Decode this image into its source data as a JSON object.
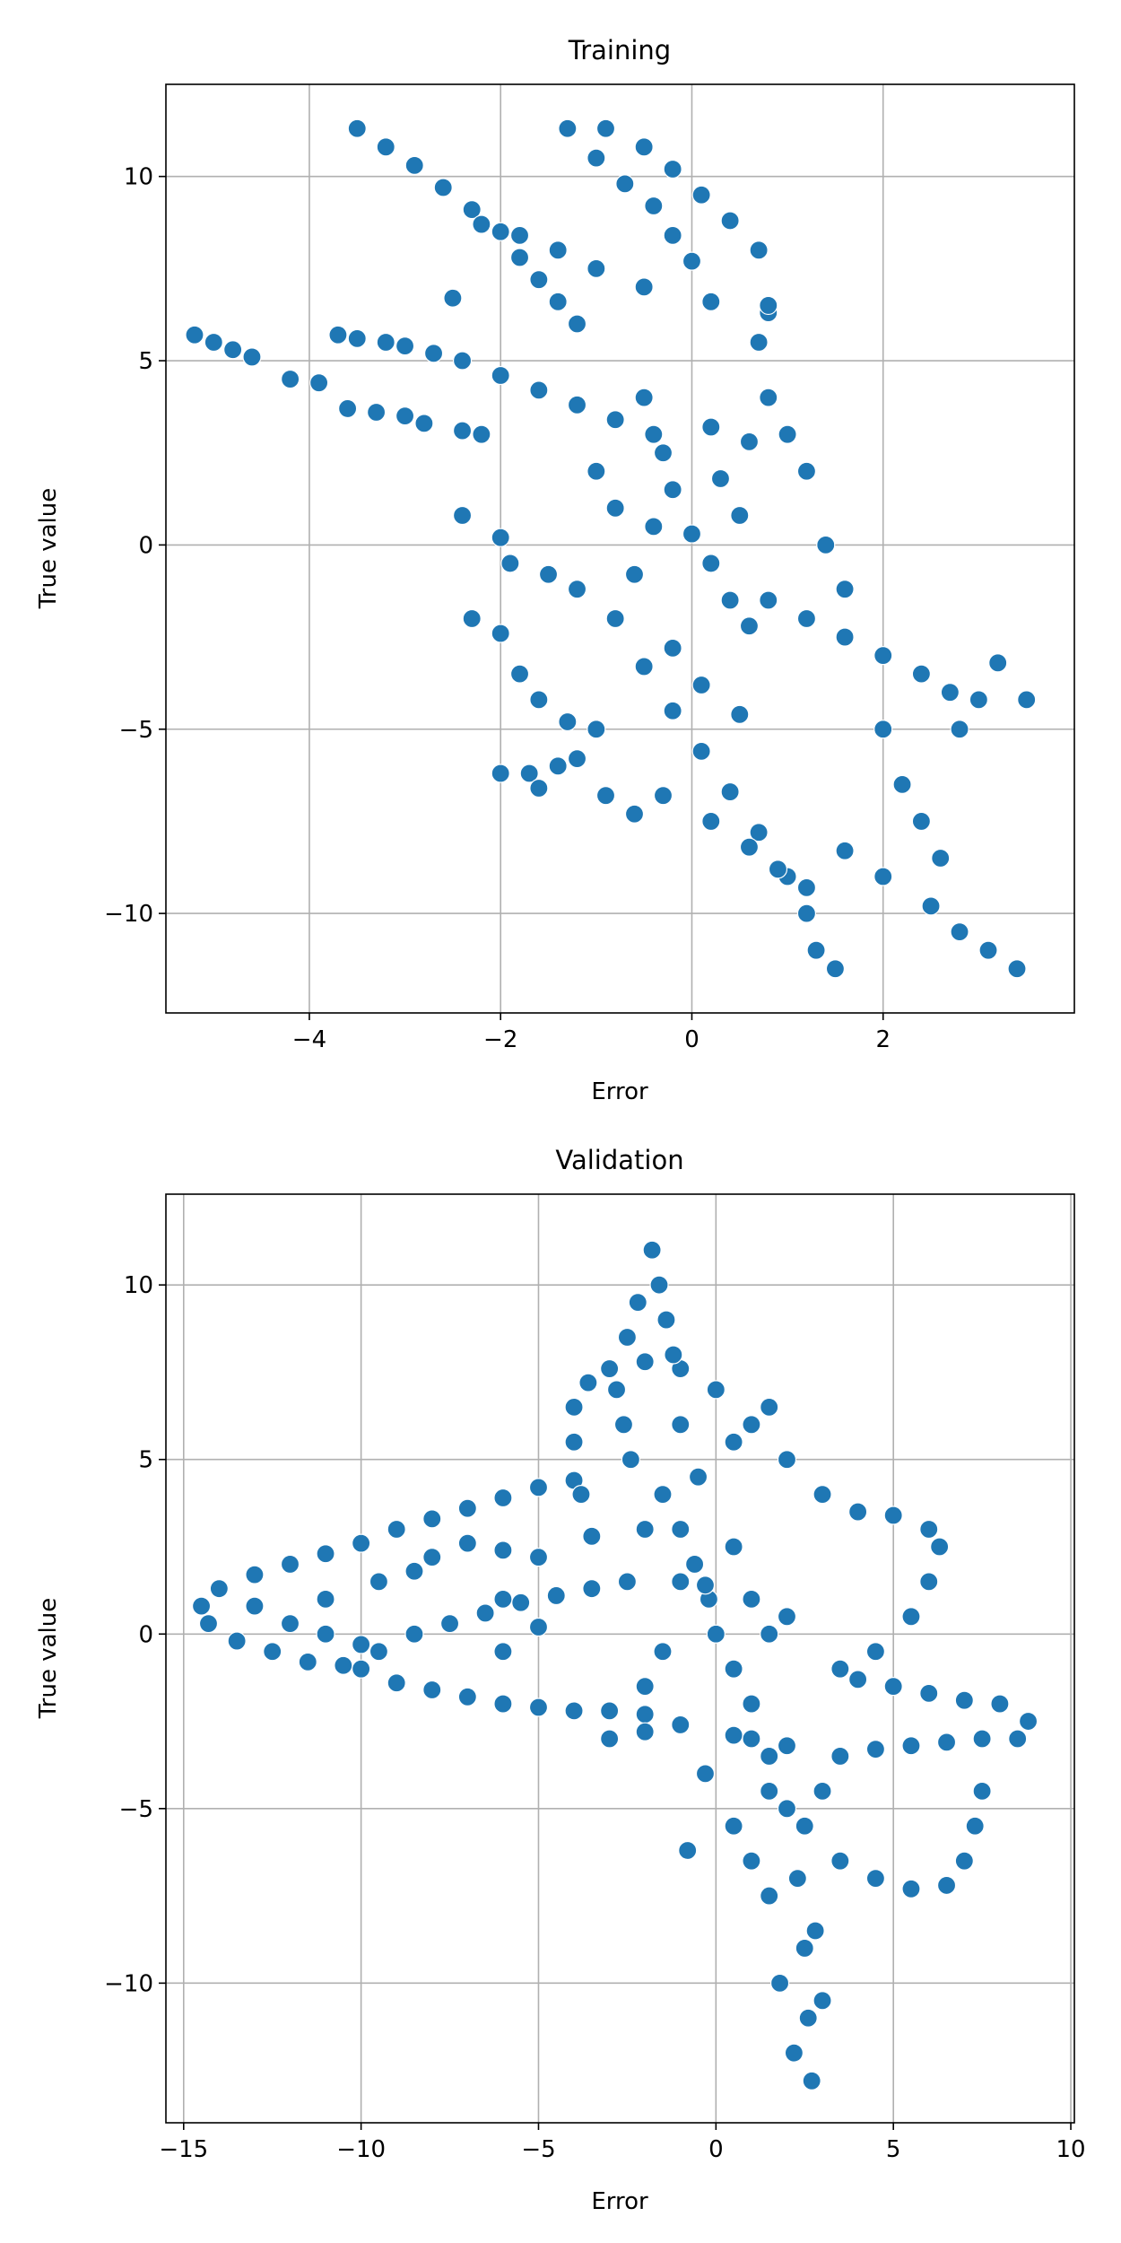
{
  "colors": {
    "point": "#1f77b4",
    "edge": "#ffffff",
    "grid": "#b0b0b0"
  },
  "chart_data": [
    {
      "type": "scatter",
      "title": "Training",
      "xlabel": "Error",
      "ylabel": "True value",
      "xlim": [
        -5.5,
        4.0
      ],
      "ylim": [
        -12.7,
        12.5
      ],
      "xticks": [
        -4,
        -2,
        0,
        2
      ],
      "yticks": [
        -10,
        -5,
        0,
        5,
        10
      ],
      "xtick_labels": [
        "−4",
        "−2",
        "0",
        "2"
      ],
      "ytick_labels": [
        "−10",
        "−5",
        "0",
        "5",
        "10"
      ],
      "grid": true,
      "series": [
        {
          "points": [
            [
              -5.2,
              5.7
            ],
            [
              -5.0,
              5.5
            ],
            [
              -4.8,
              5.3
            ],
            [
              -4.6,
              5.1
            ],
            [
              -4.2,
              4.5
            ],
            [
              -3.9,
              4.4
            ],
            [
              -3.7,
              5.7
            ],
            [
              -3.5,
              5.6
            ],
            [
              -3.2,
              5.5
            ],
            [
              -3.0,
              5.4
            ],
            [
              -2.7,
              5.2
            ],
            [
              -2.5,
              6.7
            ],
            [
              -3.6,
              3.7
            ],
            [
              -3.3,
              3.6
            ],
            [
              -3.0,
              3.5
            ],
            [
              -2.8,
              3.3
            ],
            [
              -2.4,
              3.1
            ],
            [
              -2.2,
              3.0
            ],
            [
              -3.5,
              11.3
            ],
            [
              -3.2,
              10.8
            ],
            [
              -2.9,
              10.3
            ],
            [
              -2.6,
              9.7
            ],
            [
              -2.3,
              9.1
            ],
            [
              -2.0,
              8.5
            ],
            [
              -1.8,
              7.8
            ],
            [
              -1.6,
              7.2
            ],
            [
              -1.4,
              6.6
            ],
            [
              -1.2,
              6.0
            ],
            [
              -1.3,
              11.3
            ],
            [
              -1.0,
              10.5
            ],
            [
              -0.7,
              9.8
            ],
            [
              -0.4,
              9.2
            ],
            [
              -0.2,
              8.4
            ],
            [
              0.0,
              7.7
            ],
            [
              -0.9,
              11.3
            ],
            [
              -0.5,
              10.8
            ],
            [
              -0.2,
              10.2
            ],
            [
              0.1,
              9.5
            ],
            [
              0.4,
              8.8
            ],
            [
              0.7,
              8.0
            ],
            [
              -2.2,
              8.7
            ],
            [
              -1.8,
              8.4
            ],
            [
              -1.4,
              8.0
            ],
            [
              -1.0,
              7.5
            ],
            [
              -0.5,
              7.0
            ],
            [
              0.2,
              6.6
            ],
            [
              0.8,
              6.3
            ],
            [
              -2.4,
              5.0
            ],
            [
              -2.0,
              4.6
            ],
            [
              -1.6,
              4.2
            ],
            [
              -1.2,
              3.8
            ],
            [
              -0.8,
              3.4
            ],
            [
              -0.4,
              3.0
            ],
            [
              -2.4,
              0.8
            ],
            [
              -2.0,
              0.2
            ],
            [
              -1.9,
              -0.5
            ],
            [
              -1.5,
              -0.8
            ],
            [
              -1.2,
              -1.2
            ],
            [
              -2.3,
              -2.0
            ],
            [
              -2.0,
              -2.4
            ],
            [
              -1.8,
              -3.5
            ],
            [
              -1.6,
              -4.2
            ],
            [
              -1.3,
              -4.8
            ],
            [
              -1.0,
              -5.0
            ],
            [
              -2.0,
              -6.2
            ],
            [
              -1.7,
              -6.2
            ],
            [
              -1.6,
              -6.6
            ],
            [
              -1.4,
              -6.0
            ],
            [
              -1.2,
              -5.8
            ],
            [
              -0.9,
              -6.8
            ],
            [
              -0.6,
              -7.3
            ],
            [
              -0.3,
              -6.8
            ],
            [
              -0.8,
              -2.0
            ],
            [
              -0.5,
              -3.3
            ],
            [
              -0.2,
              -4.5
            ],
            [
              0.1,
              -5.6
            ],
            [
              0.4,
              -6.7
            ],
            [
              0.7,
              -7.8
            ],
            [
              1.0,
              -9.0
            ],
            [
              1.2,
              -10.0
            ],
            [
              1.3,
              -11.0
            ],
            [
              1.5,
              -11.5
            ],
            [
              0.2,
              -7.5
            ],
            [
              0.6,
              -8.2
            ],
            [
              0.9,
              -8.8
            ],
            [
              1.2,
              -9.3
            ],
            [
              1.6,
              -8.3
            ],
            [
              2.0,
              -9.0
            ],
            [
              2.5,
              -9.8
            ],
            [
              2.8,
              -10.5
            ],
            [
              3.1,
              -11.0
            ],
            [
              3.4,
              -11.5
            ],
            [
              0.8,
              -1.5
            ],
            [
              1.2,
              -2.0
            ],
            [
              1.6,
              -2.5
            ],
            [
              2.0,
              -3.0
            ],
            [
              2.4,
              -3.5
            ],
            [
              2.7,
              -4.0
            ],
            [
              3.0,
              -4.2
            ],
            [
              3.2,
              -3.2
            ],
            [
              3.5,
              -4.2
            ],
            [
              2.0,
              -5.0
            ],
            [
              2.2,
              -6.5
            ],
            [
              2.4,
              -7.5
            ],
            [
              2.6,
              -8.5
            ],
            [
              2.8,
              -5.0
            ],
            [
              1.4,
              0.0
            ],
            [
              1.6,
              -1.2
            ],
            [
              1.2,
              2.0
            ],
            [
              1.0,
              3.0
            ],
            [
              0.8,
              4.0
            ],
            [
              0.7,
              5.5
            ],
            [
              0.8,
              6.5
            ],
            [
              -0.5,
              4.0
            ],
            [
              -0.3,
              2.5
            ],
            [
              -0.2,
              1.5
            ],
            [
              0.0,
              0.3
            ],
            [
              0.2,
              -0.5
            ],
            [
              0.4,
              -1.5
            ],
            [
              -0.8,
              1.0
            ],
            [
              -0.6,
              -0.8
            ],
            [
              -0.4,
              0.5
            ],
            [
              0.3,
              1.8
            ],
            [
              0.5,
              0.8
            ],
            [
              0.6,
              -2.2
            ],
            [
              -1.0,
              2.0
            ],
            [
              0.2,
              3.2
            ],
            [
              0.6,
              2.8
            ],
            [
              -0.2,
              -2.8
            ],
            [
              0.1,
              -3.8
            ],
            [
              0.5,
              -4.6
            ]
          ]
        }
      ]
    },
    {
      "type": "scatter",
      "title": "Validation",
      "xlabel": "Error",
      "ylabel": "True value",
      "xlim": [
        -15.5,
        10.1
      ],
      "ylim": [
        -14.0,
        12.6
      ],
      "xticks": [
        -15,
        -10,
        -5,
        0,
        5,
        10
      ],
      "yticks": [
        -10,
        -5,
        0,
        5,
        10
      ],
      "xtick_labels": [
        "−15",
        "−10",
        "−5",
        "0",
        "5",
        "10"
      ],
      "ytick_labels": [
        "−10",
        "−5",
        "0",
        "5",
        "10"
      ],
      "grid": true,
      "series": [
        {
          "points": [
            [
              -14.5,
              0.8
            ],
            [
              -14.0,
              1.3
            ],
            [
              -13.0,
              1.7
            ],
            [
              -12.0,
              2.0
            ],
            [
              -11.0,
              2.3
            ],
            [
              -10.0,
              2.6
            ],
            [
              -9.0,
              3.0
            ],
            [
              -8.0,
              3.3
            ],
            [
              -7.0,
              3.6
            ],
            [
              -6.0,
              3.9
            ],
            [
              -5.0,
              4.2
            ],
            [
              -4.0,
              4.4
            ],
            [
              -14.3,
              0.3
            ],
            [
              -13.5,
              -0.2
            ],
            [
              -12.5,
              -0.5
            ],
            [
              -11.5,
              -0.8
            ],
            [
              -10.5,
              -0.9
            ],
            [
              -13.0,
              0.8
            ],
            [
              -12.0,
              0.3
            ],
            [
              -11.0,
              0.0
            ],
            [
              -10.0,
              -0.3
            ],
            [
              -10.0,
              -1.0
            ],
            [
              -9.0,
              -1.4
            ],
            [
              -8.0,
              -1.6
            ],
            [
              -7.0,
              -1.8
            ],
            [
              -6.0,
              -2.0
            ],
            [
              -5.0,
              -2.1
            ],
            [
              -4.0,
              -2.2
            ],
            [
              -3.0,
              -2.2
            ],
            [
              -2.0,
              -2.3
            ],
            [
              -9.5,
              -0.5
            ],
            [
              -8.5,
              0.0
            ],
            [
              -7.5,
              0.3
            ],
            [
              -6.5,
              0.6
            ],
            [
              -5.5,
              0.9
            ],
            [
              -4.5,
              1.1
            ],
            [
              -3.5,
              1.3
            ],
            [
              -2.5,
              1.5
            ],
            [
              -8.0,
              2.2
            ],
            [
              -7.0,
              2.6
            ],
            [
              -6.0,
              2.4
            ],
            [
              -5.0,
              2.2
            ],
            [
              -3.5,
              2.8
            ],
            [
              -11.0,
              1.0
            ],
            [
              -9.5,
              1.5
            ],
            [
              -8.5,
              1.8
            ],
            [
              -6.0,
              1.0
            ],
            [
              -5.0,
              0.2
            ],
            [
              -6.0,
              -0.5
            ],
            [
              -3.8,
              4.0
            ],
            [
              -4.0,
              5.5
            ],
            [
              -4.0,
              6.5
            ],
            [
              -3.6,
              7.2
            ],
            [
              -3.0,
              7.6
            ],
            [
              -2.0,
              7.8
            ],
            [
              -1.0,
              7.6
            ],
            [
              -1.8,
              11.0
            ],
            [
              -1.6,
              10.0
            ],
            [
              -1.4,
              9.0
            ],
            [
              -1.2,
              8.0
            ],
            [
              -2.2,
              9.5
            ],
            [
              -2.5,
              8.5
            ],
            [
              -2.8,
              7.0
            ],
            [
              -2.6,
              6.0
            ],
            [
              -2.4,
              5.0
            ],
            [
              -1.5,
              4.0
            ],
            [
              -1.0,
              3.0
            ],
            [
              -0.6,
              2.0
            ],
            [
              -0.2,
              1.0
            ],
            [
              0.0,
              0.0
            ],
            [
              0.5,
              -1.0
            ],
            [
              1.0,
              -2.0
            ],
            [
              1.5,
              -3.5
            ],
            [
              2.0,
              -5.0
            ],
            [
              2.3,
              -7.0
            ],
            [
              2.5,
              -9.0
            ],
            [
              2.6,
              -11.0
            ],
            [
              2.7,
              -12.8
            ],
            [
              2.2,
              -12.0
            ],
            [
              1.8,
              -10.0
            ],
            [
              2.8,
              -8.5
            ],
            [
              3.0,
              -10.5
            ],
            [
              1.5,
              -7.5
            ],
            [
              1.0,
              -6.5
            ],
            [
              0.5,
              -5.5
            ],
            [
              -0.3,
              -4.0
            ],
            [
              1.0,
              6.0
            ],
            [
              2.0,
              5.0
            ],
            [
              3.0,
              4.0
            ],
            [
              4.0,
              3.5
            ],
            [
              5.0,
              3.4
            ],
            [
              6.0,
              3.0
            ],
            [
              6.3,
              2.5
            ],
            [
              6.0,
              1.5
            ],
            [
              5.5,
              0.5
            ],
            [
              4.5,
              -0.5
            ],
            [
              3.5,
              -1.0
            ],
            [
              4.0,
              -1.3
            ],
            [
              5.0,
              -1.5
            ],
            [
              6.0,
              -1.7
            ],
            [
              7.0,
              -1.9
            ],
            [
              8.0,
              -2.0
            ],
            [
              8.8,
              -2.5
            ],
            [
              8.5,
              -3.0
            ],
            [
              7.5,
              -3.0
            ],
            [
              6.5,
              -3.1
            ],
            [
              5.5,
              -3.2
            ],
            [
              4.5,
              -3.3
            ],
            [
              3.5,
              -3.5
            ],
            [
              7.5,
              -4.5
            ],
            [
              7.3,
              -5.5
            ],
            [
              7.0,
              -6.5
            ],
            [
              6.5,
              -7.2
            ],
            [
              5.5,
              -7.3
            ],
            [
              4.5,
              -7.0
            ],
            [
              3.5,
              -6.5
            ],
            [
              2.5,
              -5.5
            ],
            [
              1.5,
              -4.5
            ],
            [
              3.0,
              -4.5
            ],
            [
              -3.0,
              -3.0
            ],
            [
              -2.0,
              -2.8
            ],
            [
              -1.0,
              -2.6
            ],
            [
              0.5,
              -2.9
            ],
            [
              2.0,
              -3.2
            ],
            [
              -2.0,
              3.0
            ],
            [
              -0.5,
              4.5
            ],
            [
              0.5,
              5.5
            ],
            [
              1.5,
              6.5
            ],
            [
              -1.0,
              6.0
            ],
            [
              0.0,
              7.0
            ],
            [
              -1.0,
              1.5
            ],
            [
              1.0,
              1.0
            ],
            [
              2.0,
              0.5
            ],
            [
              -1.5,
              -0.5
            ],
            [
              -2.0,
              -1.5
            ],
            [
              0.5,
              2.5
            ],
            [
              -0.8,
              -6.2
            ],
            [
              1.0,
              -3.0
            ],
            [
              1.5,
              0.0
            ],
            [
              -0.3,
              1.4
            ]
          ]
        }
      ]
    }
  ]
}
